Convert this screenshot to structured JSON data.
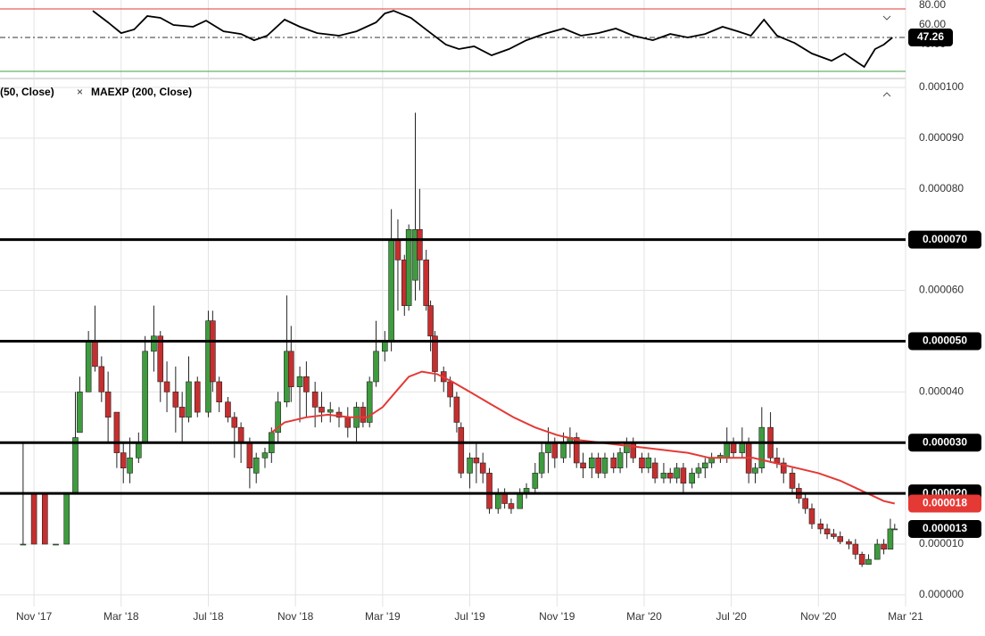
{
  "chart_data": [
    {
      "type": "line",
      "xlim": [
        -1.56,
        40
      ],
      "ylim": [
        7.3,
        85.5
      ],
      "yticks": [
        {
          "value": 80,
          "label": "80.00"
        },
        {
          "value": 60,
          "label": "60.00"
        },
        {
          "value": 40,
          "label": "40.00"
        }
      ],
      "upper_band": 76.4,
      "lower_band": 12.7,
      "line_color": "#000000",
      "upper_color": "#e53935",
      "lower_color": "#43a047",
      "last": 47.26,
      "x": [
        2.7,
        3.4,
        4.0,
        4.6,
        5.2,
        5.8,
        6.4,
        7.3,
        7.9,
        8.7,
        9.5,
        10.1,
        10.7,
        11.5,
        12.2,
        13.0,
        14.0,
        14.8,
        15.7,
        16.1,
        16.5,
        17.3,
        18.1,
        18.9,
        19.5,
        20.2,
        21.0,
        21.8,
        22.6,
        23.4,
        24.3,
        25.1,
        25.9,
        26.7,
        27.5,
        28.4,
        29.2,
        30.0,
        30.8,
        31.6,
        32.3,
        32.9,
        33.5,
        34.1,
        34.9,
        35.7,
        36.6,
        37.2,
        37.8,
        38.1,
        38.6,
        39.0,
        39.4
      ],
      "values": [
        74.5,
        62.7,
        51.8,
        55.5,
        69.1,
        67.3,
        60.0,
        58.2,
        64.5,
        53.6,
        50.9,
        44.5,
        49.1,
        65.5,
        58.2,
        51.8,
        49.1,
        53.6,
        62.7,
        71.8,
        74.5,
        67.3,
        53.6,
        40.0,
        35.5,
        38.2,
        29.1,
        35.5,
        44.5,
        50.9,
        56.4,
        49.1,
        51.8,
        56.4,
        49.1,
        44.5,
        50.9,
        47.3,
        50.9,
        58.2,
        53.6,
        49.1,
        65.5,
        49.1,
        41.8,
        30.9,
        23.6,
        30.9,
        21.8,
        17.3,
        35.5,
        40.0,
        47.26
      ]
    },
    {
      "type": "candlestick",
      "legend_items": [
        "(50, Close)",
        "MAEXP (200, Close)"
      ],
      "xlim": [
        -1.56,
        40
      ],
      "ylim": [
        -2.3e-06,
        0.0001014
      ],
      "grid": true,
      "xticks": [
        {
          "value": 0,
          "label": "Nov '17"
        },
        {
          "value": 4,
          "label": "Mar '18"
        },
        {
          "value": 8,
          "label": "Jul '18"
        },
        {
          "value": 12,
          "label": "Nov '18"
        },
        {
          "value": 16,
          "label": "Mar '19"
        },
        {
          "value": 20,
          "label": "Jul '19"
        },
        {
          "value": 24,
          "label": "Nov '19"
        },
        {
          "value": 28,
          "label": "Mar '20"
        },
        {
          "value": 32,
          "label": "Jul '20"
        },
        {
          "value": 36,
          "label": "Nov '20"
        },
        {
          "value": 40,
          "label": "Mar '21"
        }
      ],
      "yticks": [
        {
          "value": 0,
          "label": "0.000000"
        },
        {
          "value": 1e-05,
          "label": "0.000010"
        },
        {
          "value": 2e-05,
          "label": "0.000020"
        },
        {
          "value": 3e-05,
          "label": "0.000030"
        },
        {
          "value": 4e-05,
          "label": "0.000040"
        },
        {
          "value": 5e-05,
          "label": "0.000050"
        },
        {
          "value": 6e-05,
          "label": "0.000060"
        },
        {
          "value": 7e-05,
          "label": "0.000070"
        },
        {
          "value": 8e-05,
          "label": "0.000080"
        },
        {
          "value": 9e-05,
          "label": "0.000090"
        },
        {
          "value": 0.0001,
          "label": "0.000100"
        }
      ],
      "up_color": "#3e9b3e",
      "down_color": "#c62f2f",
      "levels": [
        {
          "value": 7e-05,
          "label": "0.000070"
        },
        {
          "value": 5e-05,
          "label": "0.000050"
        },
        {
          "value": 3e-05,
          "label": "0.000030"
        },
        {
          "value": 2e-05,
          "label": "0.000020"
        }
      ],
      "price_labels": [
        {
          "value": 1.8e-05,
          "label": "0.000018",
          "color": "#e53935"
        },
        {
          "value": 1.3e-05,
          "label": "0.000013",
          "color": "#000000"
        }
      ],
      "candles": {
        "x": [
          -0.5,
          0,
          0.5,
          1,
          1.5,
          1.9,
          2.1,
          2.5,
          2.8,
          3.1,
          3.4,
          3.8,
          4.1,
          4.4,
          4.8,
          5.1,
          5.5,
          5.8,
          6.1,
          6.5,
          6.8,
          7.1,
          7.5,
          8.0,
          8.2,
          8.5,
          8.9,
          9.2,
          9.5,
          9.9,
          10.2,
          10.6,
          10.9,
          11.2,
          11.6,
          11.8,
          12.2,
          12.5,
          12.9,
          13.2,
          13.6,
          14.0,
          14.4,
          14.8,
          15.1,
          15.4,
          15.7,
          16.1,
          16.4,
          16.7,
          17.0,
          17.2,
          17.5,
          17.7,
          18.0,
          18.2,
          18.4,
          18.8,
          19.1,
          19.4,
          19.6,
          20.0,
          20.3,
          20.6,
          20.9,
          21.3,
          21.6,
          21.9,
          22.3,
          22.6,
          23.0,
          23.3,
          23.6,
          23.9,
          24.3,
          24.6,
          24.9,
          25.2,
          25.6,
          25.9,
          26.2,
          26.6,
          26.9,
          27.2,
          27.5,
          27.9,
          28.2,
          28.5,
          28.9,
          29.2,
          29.5,
          29.8,
          30.2,
          30.5,
          30.8,
          31.1,
          31.5,
          31.8,
          32.1,
          32.5,
          32.8,
          33.1,
          33.4,
          33.8,
          34.1,
          34.4,
          34.8,
          35.1,
          35.4,
          35.7,
          36.1,
          36.4,
          36.7,
          37.0,
          37.4,
          37.7,
          38.0,
          38.3,
          38.7,
          39.0,
          39.3,
          39.5
        ],
        "open": [
          1e-05,
          2e-05,
          2e-05,
          1e-05,
          1e-05,
          2e-05,
          3.2e-05,
          4e-05,
          5e-05,
          4.5e-05,
          4e-05,
          3.6e-05,
          2.8e-05,
          2.4e-05,
          2.7e-05,
          3e-05,
          4.8e-05,
          5.1e-05,
          4.2e-05,
          4e-05,
          3.7e-05,
          3.5e-05,
          4.2e-05,
          3.6e-05,
          5.4e-05,
          4.2e-05,
          3.8e-05,
          3.5e-05,
          3.3e-05,
          3e-05,
          2.4e-05,
          2.7e-05,
          2.8e-05,
          3.2e-05,
          3.8e-05,
          4.8e-05,
          4.1e-05,
          4.3e-05,
          4e-05,
          3.7e-05,
          3.6e-05,
          3.6e-05,
          3.5e-05,
          3.3e-05,
          3.7e-05,
          3.4e-05,
          4.2e-05,
          4.8e-05,
          5e-05,
          7e-05,
          6.6e-05,
          5.7e-05,
          6.2e-05,
          7.2e-05,
          6.6e-05,
          5.7e-05,
          5.1e-05,
          4.4e-05,
          4.2e-05,
          3.9e-05,
          3.3e-05,
          2.4e-05,
          2.7e-05,
          2.6e-05,
          2.4e-05,
          1.7e-05,
          2e-05,
          1.8e-05,
          1.7e-05,
          2e-05,
          2.1e-05,
          2.4e-05,
          2.8e-05,
          3e-05,
          2.7e-05,
          3e-05,
          3.1e-05,
          2.6e-05,
          2.5e-05,
          2.7e-05,
          2.4e-05,
          2.7e-05,
          2.5e-05,
          2.8e-05,
          3e-05,
          2.7e-05,
          2.5e-05,
          2.6e-05,
          2.3e-05,
          2.4e-05,
          2.3e-05,
          2.5e-05,
          2.2e-05,
          2.4e-05,
          2.5e-05,
          2.6e-05,
          2.7e-05,
          2.7e-05,
          3e-05,
          2.8e-05,
          3e-05,
          2.4e-05,
          2.5e-05,
          3.3e-05,
          2.7e-05,
          2.6e-05,
          2.4e-05,
          2.1e-05,
          1.9e-05,
          1.7e-05,
          1.4e-05,
          1.3e-05,
          1.2e-05,
          1.15e-05,
          1.05e-05,
          1e-05,
          8e-06,
          6e-06,
          7e-06,
          1e-05,
          9e-06,
          1.3e-05
        ],
        "high": [
          3e-05,
          2e-05,
          2e-05,
          1e-05,
          2e-05,
          4e-05,
          4.3e-05,
          5.2e-05,
          5.7e-05,
          4.7e-05,
          4.4e-05,
          3.6e-05,
          3e-05,
          3.1e-05,
          3.2e-05,
          5.1e-05,
          5.7e-05,
          5.2e-05,
          4.6e-05,
          4.5e-05,
          4e-05,
          4.7e-05,
          4.3e-05,
          5.6e-05,
          5.6e-05,
          4.3e-05,
          3.9e-05,
          3.6e-05,
          3.4e-05,
          3.1e-05,
          2.8e-05,
          2.9e-05,
          3.3e-05,
          4e-05,
          5.9e-05,
          5.3e-05,
          4.5e-05,
          4.6e-05,
          4.2e-05,
          4e-05,
          3.8e-05,
          3.7e-05,
          3.7e-05,
          3.8e-05,
          3.8e-05,
          4.3e-05,
          5.4e-05,
          5.2e-05,
          7.6e-05,
          7.4e-05,
          6.7e-05,
          7.3e-05,
          9.5e-05,
          8e-05,
          6.8e-05,
          5.8e-05,
          5.2e-05,
          4.5e-05,
          4.3e-05,
          4e-05,
          3.4e-05,
          2.8e-05,
          3e-05,
          2.8e-05,
          2.5e-05,
          2.1e-05,
          2.1e-05,
          1.9e-05,
          2.1e-05,
          2.2e-05,
          2.6e-05,
          3e-05,
          3.3e-05,
          3.1e-05,
          3.2e-05,
          3.3e-05,
          3.2e-05,
          2.8e-05,
          2.8e-05,
          2.8e-05,
          2.8e-05,
          2.8e-05,
          2.9e-05,
          3.1e-05,
          3.1e-05,
          2.8e-05,
          2.8e-05,
          2.7e-05,
          2.6e-05,
          2.5e-05,
          2.6e-05,
          2.6e-05,
          2.5e-05,
          2.6e-05,
          2.7e-05,
          2.8e-05,
          2.8e-05,
          3.3e-05,
          3.1e-05,
          3.3e-05,
          3.1e-05,
          2.6e-05,
          3.7e-05,
          3.6e-05,
          2.9e-05,
          2.7e-05,
          2.5e-05,
          2.2e-05,
          2e-05,
          1.8e-05,
          1.5e-05,
          1.4e-05,
          1.3e-05,
          1.25e-05,
          1.1e-05,
          1.1e-05,
          8.5e-06,
          8e-06,
          1.1e-05,
          1.1e-05,
          1.5e-05,
          1.4e-05
        ],
        "low": [
          1e-05,
          1e-05,
          1e-05,
          1e-05,
          1e-05,
          2e-05,
          3.2e-05,
          4e-05,
          4.4e-05,
          3.8e-05,
          3e-05,
          2.5e-05,
          2.2e-05,
          2.2e-05,
          2.6e-05,
          3e-05,
          4.4e-05,
          3.8e-05,
          3.6e-05,
          3.2e-05,
          3e-05,
          3.4e-05,
          3.5e-05,
          3.5e-05,
          4e-05,
          3.6e-05,
          3.4e-05,
          2.7e-05,
          2.6e-05,
          2.1e-05,
          2.2e-05,
          2.5e-05,
          2.6e-05,
          3e-05,
          3.7e-05,
          3.8e-05,
          3.4e-05,
          3.5e-05,
          3.3e-05,
          3.4e-05,
          3.4e-05,
          3.3e-05,
          3.1e-05,
          3e-05,
          3.3e-05,
          3.3e-05,
          4.1e-05,
          4.6e-05,
          4.8e-05,
          5.6e-05,
          5.5e-05,
          5.6e-05,
          5.8e-05,
          6e-05,
          5.6e-05,
          4.8e-05,
          4.2e-05,
          4e-05,
          3.7e-05,
          3.2e-05,
          2.3e-05,
          2.1e-05,
          2.2e-05,
          2.2e-05,
          1.6e-05,
          1.6e-05,
          1.7e-05,
          1.6e-05,
          1.7e-05,
          1.9e-05,
          2e-05,
          2.3e-05,
          2.4e-05,
          2.5e-05,
          2.6e-05,
          2.7e-05,
          2.5e-05,
          2.3e-05,
          2.3e-05,
          2.3e-05,
          2.3e-05,
          2.4e-05,
          2.4e-05,
          2.5e-05,
          2.6e-05,
          2.4e-05,
          2.4e-05,
          2.2e-05,
          2.2e-05,
          2.2e-05,
          2.2e-05,
          2e-05,
          2.1e-05,
          2.3e-05,
          2.3e-05,
          2.5e-05,
          2.6e-05,
          2.6e-05,
          2.7e-05,
          2.7e-05,
          2.2e-05,
          2.2e-05,
          2.4e-05,
          2.6e-05,
          2.5e-05,
          2.2e-05,
          2e-05,
          1.8e-05,
          1.6e-05,
          1.3e-05,
          1.2e-05,
          1.1e-05,
          1.1e-05,
          1e-05,
          9e-06,
          7e-06,
          5.5e-06,
          6e-06,
          7e-06,
          8e-06,
          9e-06,
          1.3e-05
        ],
        "close": [
          1e-05,
          1e-05,
          1e-05,
          1e-05,
          2e-05,
          3.1e-05,
          4e-05,
          5e-05,
          4.5e-05,
          4e-05,
          3.5e-05,
          2.8e-05,
          2.5e-05,
          2.7e-05,
          3e-05,
          4.8e-05,
          5.1e-05,
          4.2e-05,
          4e-05,
          3.7e-05,
          3.5e-05,
          4.2e-05,
          3.6e-05,
          5.4e-05,
          4.2e-05,
          3.8e-05,
          3.5e-05,
          3.3e-05,
          3e-05,
          2.5e-05,
          2.7e-05,
          2.8e-05,
          3.2e-05,
          3.8e-05,
          4.8e-05,
          4.1e-05,
          4.3e-05,
          4e-05,
          3.7e-05,
          3.6e-05,
          3.65e-05,
          3.5e-05,
          3.3e-05,
          3.7e-05,
          3.4e-05,
          4.2e-05,
          4.8e-05,
          5e-05,
          7e-05,
          6.6e-05,
          5.7e-05,
          7.2e-05,
          7.2e-05,
          6.6e-05,
          5.7e-05,
          5.1e-05,
          4.4e-05,
          4.2e-05,
          3.9e-05,
          3.4e-05,
          2.4e-05,
          2.7e-05,
          2.6e-05,
          2.4e-05,
          1.7e-05,
          2e-05,
          1.8e-05,
          1.7e-05,
          2e-05,
          2.1e-05,
          2.4e-05,
          2.8e-05,
          3e-05,
          2.7e-05,
          3e-05,
          3.1e-05,
          2.6e-05,
          2.5e-05,
          2.7e-05,
          2.4e-05,
          2.7e-05,
          2.5e-05,
          2.8e-05,
          3e-05,
          2.7e-05,
          2.5e-05,
          2.7e-05,
          2.3e-05,
          2.4e-05,
          2.3e-05,
          2.5e-05,
          2.2e-05,
          2.4e-05,
          2.5e-05,
          2.6e-05,
          2.7e-05,
          2.75e-05,
          3e-05,
          2.8e-05,
          3e-05,
          2.4e-05,
          2.5e-05,
          3.3e-05,
          2.7e-05,
          2.6e-05,
          2.4e-05,
          2.1e-05,
          1.9e-05,
          1.7e-05,
          1.4e-05,
          1.3e-05,
          1.2e-05,
          1.15e-05,
          1.05e-05,
          1e-05,
          8e-06,
          6e-06,
          7e-06,
          1e-05,
          9e-06,
          1.3e-05,
          1.3e-05
        ]
      },
      "ma": {
        "color": "#e53935",
        "x": [
          10.9,
          11.5,
          12.5,
          13.5,
          14.5,
          15.3,
          16.0,
          16.6,
          17.2,
          17.8,
          18.5,
          19.2,
          20,
          21,
          22,
          23,
          24,
          25,
          26,
          27,
          28,
          29,
          30,
          31,
          32,
          33,
          33.5,
          34,
          35,
          36,
          37,
          38,
          39,
          39.5
        ],
        "values": [
          3.2e-05,
          3.4e-05,
          3.5e-05,
          3.55e-05,
          3.5e-05,
          3.5e-05,
          3.7e-05,
          4e-05,
          4.3e-05,
          4.4e-05,
          4.35e-05,
          4.2e-05,
          4e-05,
          3.75e-05,
          3.5e-05,
          3.3e-05,
          3.15e-05,
          3.05e-05,
          3e-05,
          2.95e-05,
          2.9e-05,
          2.85e-05,
          2.8e-05,
          2.7e-05,
          2.7e-05,
          2.7e-05,
          2.65e-05,
          2.6e-05,
          2.5e-05,
          2.4e-05,
          2.25e-05,
          2.05e-05,
          1.85e-05,
          1.8e-05
        ]
      }
    }
  ]
}
